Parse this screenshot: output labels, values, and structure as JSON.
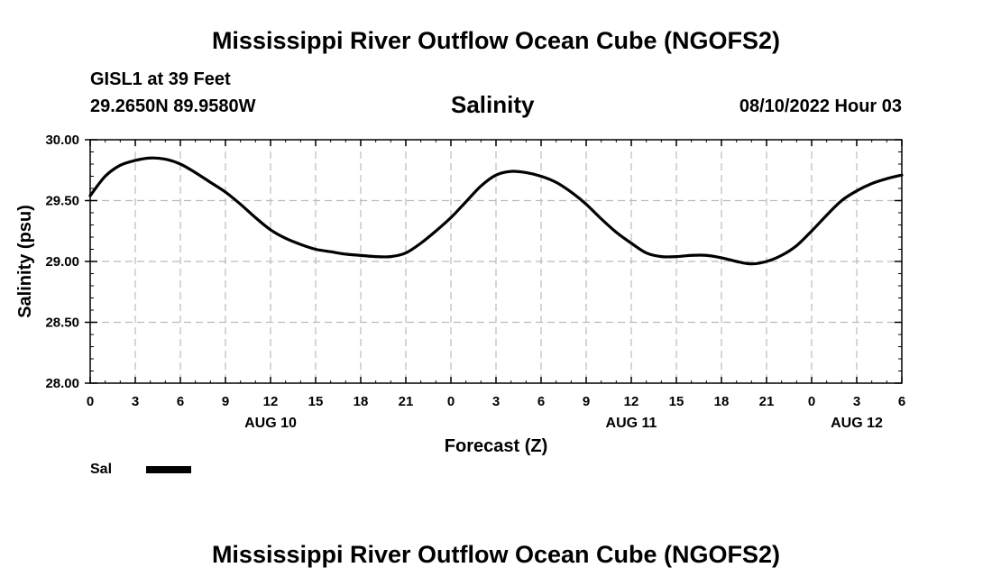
{
  "header": {
    "main_title": "Mississippi River Outflow Ocean Cube (NGOFS2)",
    "station": "GISL1 at 39 Feet",
    "coordinates": "29.2650N  89.9580W",
    "chart_title": "Salinity",
    "forecast_time": "08/10/2022 Hour 03"
  },
  "footer": {
    "title": "Mississippi River Outflow Ocean Cube (NGOFS2)"
  },
  "colors": {
    "line": "#000000",
    "grid": "#bbbbbb",
    "axis": "#000000",
    "background": "#ffffff"
  },
  "chart_data": {
    "type": "line",
    "title": "Salinity",
    "xlabel": "Forecast (Z)",
    "ylabel": "Salinity (psu)",
    "xlim": [
      0,
      54
    ],
    "ylim": [
      28.0,
      30.0
    ],
    "grid": true,
    "x_ticks": [
      0,
      3,
      6,
      9,
      12,
      15,
      18,
      21,
      24,
      27,
      30,
      33,
      36,
      39,
      42,
      45,
      48,
      51,
      54
    ],
    "x_tick_labels": [
      "0",
      "3",
      "6",
      "9",
      "12",
      "15",
      "18",
      "21",
      "0",
      "3",
      "6",
      "9",
      "12",
      "15",
      "18",
      "21",
      "0",
      "3",
      "6"
    ],
    "date_labels": [
      {
        "x": 12,
        "label": "AUG 10"
      },
      {
        "x": 36,
        "label": "AUG 11"
      },
      {
        "x": 51,
        "label": "AUG 12"
      }
    ],
    "y_ticks": [
      28.0,
      28.5,
      29.0,
      29.5,
      30.0
    ],
    "y_tick_labels": [
      "28.00",
      "28.50",
      "29.00",
      "29.50",
      "30.00"
    ],
    "legend_position": "bottom-left",
    "series": [
      {
        "name": "Sal",
        "x": [
          0,
          1,
          2,
          3,
          4,
          5,
          6,
          7,
          8,
          9,
          10,
          11,
          12,
          13,
          14,
          15,
          16,
          17,
          18,
          19,
          20,
          21,
          22,
          23,
          24,
          25,
          26,
          27,
          28,
          29,
          30,
          31,
          32,
          33,
          34,
          35,
          36,
          37,
          38,
          39,
          40,
          41,
          42,
          43,
          44,
          45,
          46,
          47,
          48,
          49,
          50,
          51,
          52,
          53,
          54
        ],
        "values": [
          29.54,
          29.7,
          29.79,
          29.83,
          29.85,
          29.84,
          29.8,
          29.73,
          29.65,
          29.57,
          29.47,
          29.36,
          29.26,
          29.19,
          29.14,
          29.1,
          29.08,
          29.06,
          29.05,
          29.04,
          29.04,
          29.07,
          29.15,
          29.25,
          29.36,
          29.49,
          29.62,
          29.71,
          29.74,
          29.73,
          29.7,
          29.65,
          29.57,
          29.47,
          29.35,
          29.24,
          29.15,
          29.07,
          29.04,
          29.04,
          29.05,
          29.05,
          29.03,
          29.0,
          28.98,
          29.0,
          29.05,
          29.13,
          29.25,
          29.38,
          29.5,
          29.58,
          29.64,
          29.68,
          29.71
        ]
      }
    ]
  }
}
